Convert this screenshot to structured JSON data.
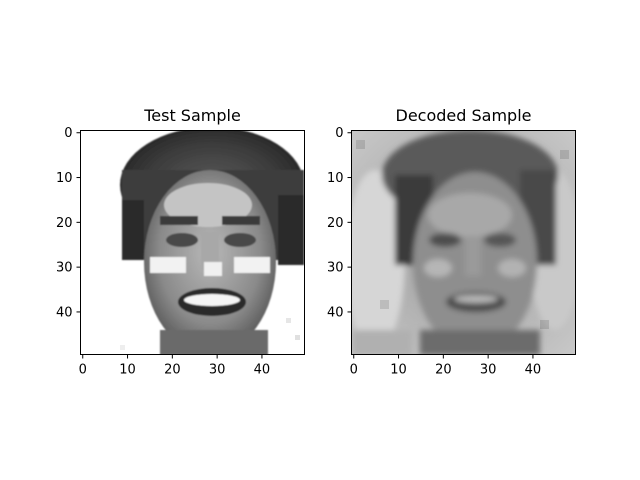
{
  "figure": {
    "background": "#ffffff"
  },
  "chart_data": [
    {
      "type": "heatmap",
      "title": "Test Sample",
      "xlabel": "",
      "ylabel": "",
      "colormap": "gray",
      "grid": false,
      "image_shape": [
        50,
        50
      ],
      "xlim": [
        -0.5,
        49.5
      ],
      "ylim": [
        49.5,
        -0.5
      ],
      "xticks": [
        0,
        10,
        20,
        30,
        40
      ],
      "yticks": [
        0,
        10,
        20,
        30,
        40
      ],
      "xtick_labels": [
        "0",
        "10",
        "20",
        "30",
        "40"
      ],
      "ytick_labels": [
        "0",
        "10",
        "20",
        "30",
        "40"
      ]
    },
    {
      "type": "heatmap",
      "title": "Decoded Sample",
      "xlabel": "",
      "ylabel": "",
      "colormap": "gray",
      "grid": false,
      "image_shape": [
        50,
        50
      ],
      "xlim": [
        -0.5,
        49.5
      ],
      "ylim": [
        49.5,
        -0.5
      ],
      "xticks": [
        0,
        10,
        20,
        30,
        40
      ],
      "yticks": [
        0,
        10,
        20,
        30,
        40
      ],
      "xtick_labels": [
        "0",
        "10",
        "20",
        "30",
        "40"
      ],
      "ytick_labels": [
        "0",
        "10",
        "20",
        "30",
        "40"
      ]
    }
  ]
}
